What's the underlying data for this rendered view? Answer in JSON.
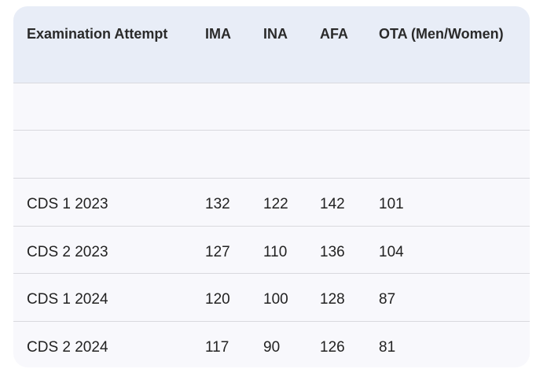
{
  "table": {
    "header": [
      "Examination Attempt",
      "IMA",
      "INA",
      "AFA",
      "OTA (Men/Women)"
    ],
    "rows": [
      [
        "CDS 1 2023",
        132,
        122,
        142,
        101
      ],
      [
        "CDS 2 2023",
        127,
        110,
        136,
        104
      ],
      [
        "CDS 1 2024",
        120,
        100,
        128,
        87
      ],
      [
        "CDS 2 2024",
        117,
        90,
        126,
        81
      ]
    ]
  }
}
